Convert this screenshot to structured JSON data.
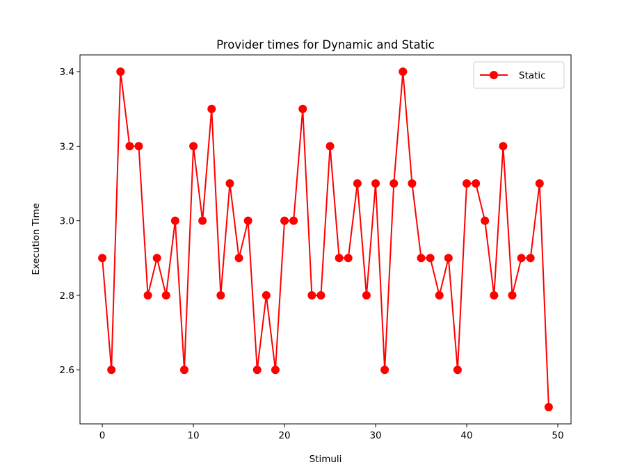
{
  "chart_data": {
    "type": "line",
    "title": "Provider times for Dynamic and Static",
    "xlabel": "Stimuli",
    "ylabel": "Execution Time",
    "xlim": [
      -2.45,
      51.45
    ],
    "ylim": [
      2.455,
      3.445
    ],
    "xticks": [
      0,
      10,
      20,
      30,
      40,
      50
    ],
    "yticks": [
      2.6,
      2.8,
      3.0,
      3.2,
      3.4
    ],
    "xtick_labels": [
      "0",
      "10",
      "20",
      "30",
      "40",
      "50"
    ],
    "ytick_labels": [
      "2.6",
      "2.8",
      "3.0",
      "3.2",
      "3.4"
    ],
    "grid": false,
    "legend": {
      "position": "top-right"
    },
    "series": [
      {
        "name": "Static",
        "color": "#ff0000",
        "marker": "circle",
        "x": [
          0,
          1,
          2,
          3,
          4,
          5,
          6,
          7,
          8,
          9,
          10,
          11,
          12,
          13,
          14,
          15,
          16,
          17,
          18,
          19,
          20,
          21,
          22,
          23,
          24,
          25,
          26,
          27,
          28,
          29,
          30,
          31,
          32,
          33,
          34,
          35,
          36,
          37,
          38,
          39,
          40,
          41,
          42,
          43,
          44,
          45,
          46,
          47,
          48,
          49
        ],
        "values": [
          2.9,
          2.6,
          3.4,
          3.2,
          3.2,
          2.8,
          2.9,
          2.8,
          3.0,
          2.6,
          3.2,
          3.0,
          3.3,
          2.8,
          3.1,
          2.9,
          3.0,
          2.6,
          2.8,
          2.6,
          3.0,
          3.0,
          3.3,
          2.8,
          2.8,
          3.2,
          2.9,
          2.9,
          3.1,
          2.8,
          3.1,
          2.6,
          3.1,
          3.4,
          3.1,
          2.9,
          2.9,
          2.8,
          2.9,
          2.6,
          3.1,
          3.1,
          3.0,
          2.8,
          3.2,
          2.8,
          2.9,
          2.9,
          3.1,
          2.5
        ]
      }
    ]
  }
}
